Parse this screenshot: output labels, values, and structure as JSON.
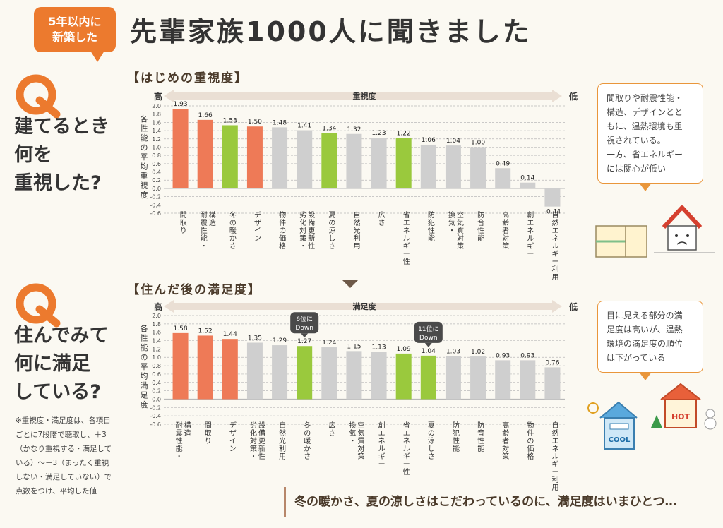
{
  "header": {
    "badge_line1": "5年以内に",
    "badge_line2": "新築した",
    "title": "先輩家族1000人に聞きました"
  },
  "colors": {
    "orange": "#ee7a57",
    "green": "#9ac93d",
    "gray": "#cfcfcf",
    "accent": "#ec7a2e"
  },
  "q1": {
    "line1": "建てるとき",
    "line2": "何を",
    "line3": "重視した?",
    "section": "【はじめの重視度】",
    "callout": [
      "間取りや耐震性能・",
      "構造、デザインとと",
      "もに、温熱環境も重",
      "視されている。",
      "一方、省エネルギー",
      "には関心が低い"
    ]
  },
  "q2": {
    "line1": "住んでみて",
    "line2": "何に満足",
    "line3": "している?",
    "section": "【住んだ後の満足度】",
    "callout": [
      "目に見える部分の満",
      "足度は高いが、温熱",
      "環境の満足度の順位",
      "は下がっている"
    ]
  },
  "note": "※重視度・満足度は、各項目ごとに7段階で聴取し、＋3（かなり重視する・満足している）〜－3（まったく重視しない・満足していない）で点数をつけ、平均した値",
  "footer": "冬の暖かさ、夏の涼しさはこだわっているのに、満足度はいまひとつ…",
  "illustrations": {
    "cool": "COOL",
    "hot": "HOT"
  },
  "chart_data": [
    {
      "type": "bar",
      "title": "【はじめの重視度】",
      "axis_banner": "重視度",
      "high_label": "高",
      "low_label": "低",
      "ylabel": "各性能の平均重視度",
      "ylim": [
        -0.6,
        2.0
      ],
      "grid": true,
      "categories": [
        "間取り",
        "耐震性能・構造",
        "冬の暖かさ",
        "デザイン",
        "物件の価格",
        "劣化対策・設備更新性",
        "夏の涼しさ",
        "自然光利用",
        "広さ",
        "省エネルギー性",
        "防犯性能",
        "換気・空気質対策",
        "防音性能",
        "高齢者対策",
        "創エネルギー",
        "自然エネルギー利用"
      ],
      "values": [
        1.93,
        1.66,
        1.53,
        1.5,
        1.48,
        1.41,
        1.34,
        1.32,
        1.23,
        1.22,
        1.06,
        1.04,
        1.0,
        0.49,
        0.14,
        -0.44
      ],
      "labels": [
        "1.93",
        "1.66",
        "1.53",
        "1.50",
        "1.48",
        "1.41",
        "1.34",
        "1.32",
        "1.23",
        "1.22",
        "1.06",
        "1.04",
        "1.00",
        "0.49",
        "0.14",
        "-0.44"
      ],
      "colors": [
        "orange",
        "orange",
        "green",
        "orange",
        "gray",
        "gray",
        "green",
        "gray",
        "gray",
        "green",
        "gray",
        "gray",
        "gray",
        "gray",
        "gray",
        "gray"
      ],
      "yticks": [
        "2.0",
        "1.8",
        "1.6",
        "1.4",
        "1.2",
        "1.0",
        "0.8",
        "0.6",
        "0.4",
        "0.2",
        "0.0",
        "-0.2",
        "-0.4",
        "-0.6"
      ]
    },
    {
      "type": "bar",
      "title": "【住んだ後の満足度】",
      "axis_banner": "満足度",
      "high_label": "高",
      "low_label": "低",
      "ylabel": "各性能の平均満足度",
      "ylim": [
        -0.6,
        2.0
      ],
      "grid": true,
      "categories": [
        "耐震性能・構造",
        "間取り",
        "デザイン",
        "劣化対策・設備更新性",
        "自然光利用",
        "冬の暖かさ",
        "広さ",
        "換気・空気質対策",
        "創エネルギー",
        "省エネルギー性",
        "夏の涼しさ",
        "防犯性能",
        "防音性能",
        "高齢者対策",
        "物件の価格",
        "自然エネルギー利用"
      ],
      "values": [
        1.58,
        1.52,
        1.44,
        1.35,
        1.29,
        1.27,
        1.24,
        1.15,
        1.13,
        1.09,
        1.04,
        1.03,
        1.02,
        0.93,
        0.93,
        0.76
      ],
      "labels": [
        "1.58",
        "1.52",
        "1.44",
        "1.35",
        "1.29",
        "1.27",
        "1.24",
        "1.15",
        "1.13",
        "1.09",
        "1.04",
        "1.03",
        "1.02",
        "0.93",
        "0.93",
        "0.76"
      ],
      "colors": [
        "orange",
        "orange",
        "orange",
        "gray",
        "gray",
        "green",
        "gray",
        "gray",
        "gray",
        "green",
        "green",
        "gray",
        "gray",
        "gray",
        "gray",
        "gray"
      ],
      "yticks": [
        "2.0",
        "1.8",
        "1.6",
        "1.4",
        "1.2",
        "1.0",
        "0.8",
        "0.6",
        "0.4",
        "0.2",
        "0.0",
        "-0.2",
        "-0.4",
        "-0.6"
      ],
      "annotations": [
        {
          "index": 5,
          "line1": "6位に",
          "line2": "Down"
        },
        {
          "index": 10,
          "line1": "11位に",
          "line2": "Down"
        }
      ]
    }
  ]
}
